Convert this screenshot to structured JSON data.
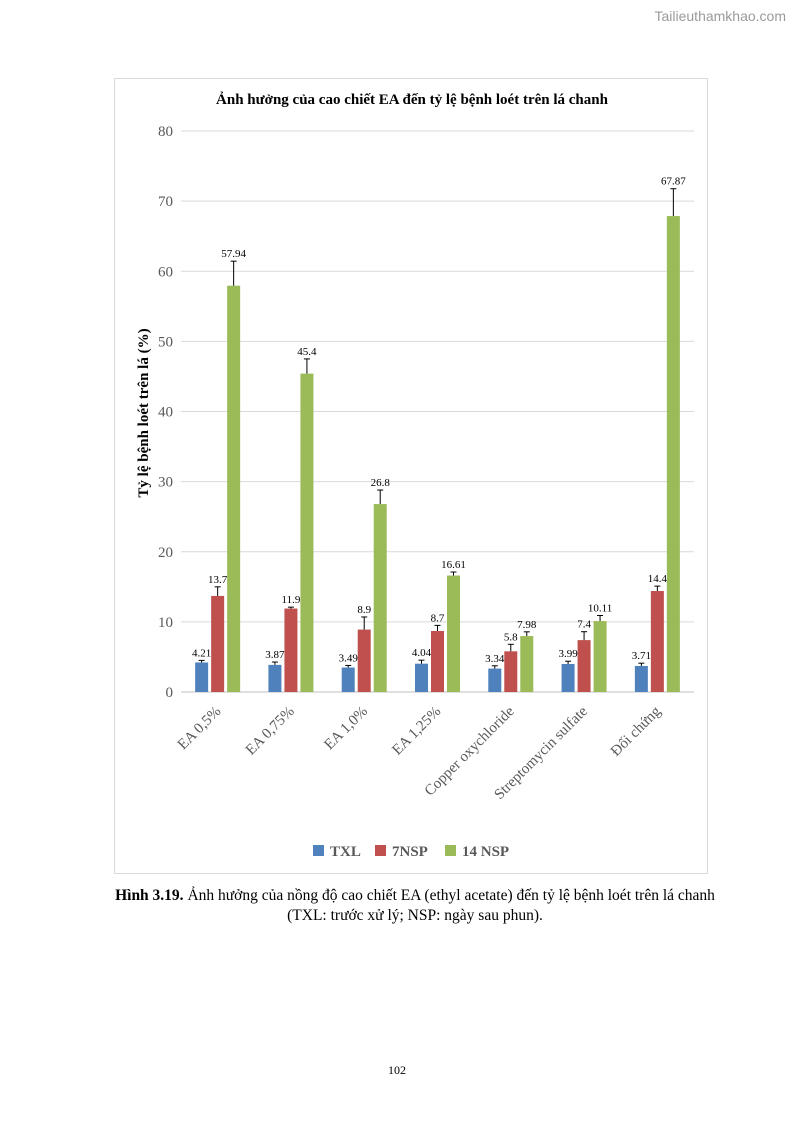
{
  "watermark": "Tailieuthamkhao.com",
  "chart_data": {
    "type": "bar",
    "title": "Ảnh hưởng của cao chiết EA đến tỷ lệ bệnh loét trên lá chanh",
    "xlabel": "",
    "ylabel": "Tỷ lệ bệnh loét trên lá (%)",
    "ylim": [
      0,
      80
    ],
    "yticks": [
      0,
      10,
      20,
      30,
      40,
      50,
      60,
      70,
      80
    ],
    "grid": true,
    "legend_position": "bottom",
    "categories": [
      "EA 0,5%",
      "EA 0,75%",
      "EA 1,0%",
      "EA 1,25%",
      "Copper oxychloride",
      "Streptomycin sulfate",
      "Đối chứng"
    ],
    "series": [
      {
        "name": "TXL",
        "color": "#4f81bd",
        "values": [
          4.21,
          3.87,
          3.49,
          4.04,
          3.34,
          3.99,
          3.71
        ],
        "labels": [
          "4.21",
          "3.87",
          "3.49",
          "4.04",
          "3.34",
          "3.99",
          "3.71"
        ],
        "errors": [
          0.3,
          0.4,
          0.3,
          0.5,
          0.4,
          0.4,
          0.4
        ]
      },
      {
        "name": "7NSP",
        "color": "#c0504d",
        "values": [
          13.7,
          11.9,
          8.9,
          8.7,
          5.8,
          7.4,
          14.4
        ],
        "labels": [
          "13.7",
          "11.9",
          "8.9",
          "8.7",
          "5.8",
          "7.4",
          "14.4"
        ],
        "errors": [
          1.3,
          0.2,
          1.8,
          0.8,
          1.0,
          1.2,
          0.7
        ]
      },
      {
        "name": "14 NSP",
        "color": "#9bbb59",
        "values": [
          57.94,
          45.4,
          26.8,
          16.61,
          7.98,
          10.11,
          67.87
        ],
        "labels": [
          "57.94",
          "45.4",
          "26.8",
          "16.61",
          "7.98",
          "10.11",
          "67.87"
        ],
        "errors": [
          3.5,
          2.1,
          2.0,
          0.5,
          0.6,
          0.8,
          3.9
        ]
      }
    ]
  },
  "caption": {
    "label": "Hình 3.19.",
    "text": " Ảnh hưởng của nồng độ cao chiết EA (ethyl acetate) đến tỷ lệ bệnh loét trên lá chanh",
    "note": "(TXL: trước xử lý; NSP: ngày sau phun)."
  },
  "page_number": "102"
}
